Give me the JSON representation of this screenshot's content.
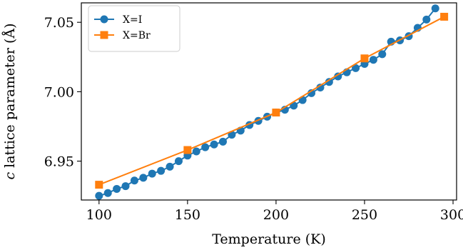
{
  "chart_data": {
    "type": "line",
    "xlabel": "Temperature (K)",
    "ylabel_var": "c",
    "ylabel": " lattice parameter (Å)",
    "xlim": [
      90,
      302
    ],
    "ylim": [
      6.922,
      7.064
    ],
    "x_ticks": [
      100,
      150,
      200,
      250,
      300
    ],
    "y_ticks": [
      6.95,
      7.0,
      7.05
    ],
    "x_tick_labels": [
      "100",
      "150",
      "200",
      "250",
      "300"
    ],
    "y_tick_labels": [
      "6.95",
      "7.00",
      "7.05"
    ],
    "grid": false,
    "legend_position": "top-left",
    "series": [
      {
        "name": "X=I",
        "color": "#1f77b4",
        "marker": "circle",
        "x": [
          100,
          105,
          110,
          115,
          120,
          125,
          130,
          135,
          140,
          145,
          150,
          155,
          160,
          165,
          170,
          175,
          180,
          185,
          190,
          195,
          200,
          205,
          210,
          215,
          220,
          225,
          230,
          235,
          240,
          245,
          250,
          255,
          260,
          265,
          270,
          275,
          280,
          285,
          290
        ],
        "y": [
          6.925,
          6.927,
          6.93,
          6.932,
          6.936,
          6.938,
          6.941,
          6.943,
          6.946,
          6.95,
          6.954,
          6.957,
          6.96,
          6.962,
          6.964,
          6.969,
          6.972,
          6.976,
          6.979,
          6.982,
          6.985,
          6.987,
          6.99,
          6.994,
          6.999,
          7.003,
          7.007,
          7.011,
          7.014,
          7.017,
          7.02,
          7.023,
          7.027,
          7.036,
          7.037,
          7.04,
          7.046,
          7.052,
          7.06
        ]
      },
      {
        "name": "X=Br",
        "color": "#ff7f0e",
        "marker": "square",
        "x": [
          100,
          150,
          200,
          250,
          295
        ],
        "y": [
          6.933,
          6.958,
          6.985,
          7.024,
          7.054
        ]
      }
    ]
  }
}
